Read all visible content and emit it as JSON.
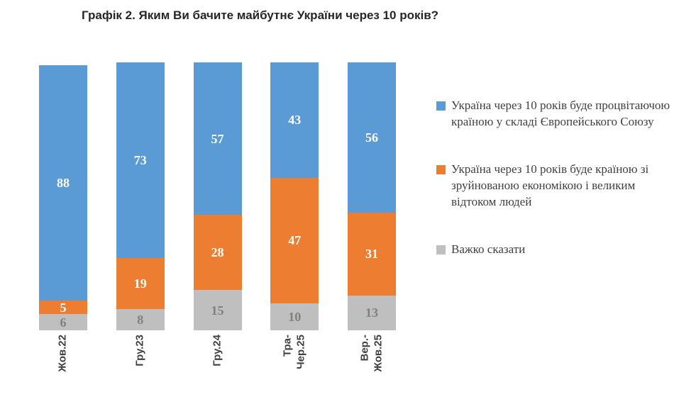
{
  "title": "Графік 2. Яким Ви бачите майбутнє України через 10 років?",
  "chart_data": {
    "type": "bar",
    "stacked": true,
    "orientation": "vertical",
    "categories": [
      "Жов.22",
      "Гру.23",
      "Гру.24",
      "Тра-\nЧер.25",
      "Вер.-\nЖов.25"
    ],
    "series": [
      {
        "name": "Україна через 10 років буде процвітаючою країною у складі Європейського Союзу",
        "color": "#5B9BD5",
        "label_color": "#FFFFFF",
        "values": [
          88,
          73,
          57,
          43,
          56
        ]
      },
      {
        "name": "Україна через 10 років буде країною зі зруйнованою економікою і великим відтоком людей",
        "color": "#ED7D31",
        "label_color": "#FFFFFF",
        "values": [
          5,
          19,
          28,
          47,
          31
        ]
      },
      {
        "name": "Важко сказати",
        "color": "#BFBFBF",
        "label_color": "#808080",
        "values": [
          6,
          8,
          15,
          10,
          13
        ]
      }
    ],
    "ylim": [
      0,
      100
    ],
    "grid": false,
    "legend_position": "right",
    "value_labels": "inside"
  }
}
